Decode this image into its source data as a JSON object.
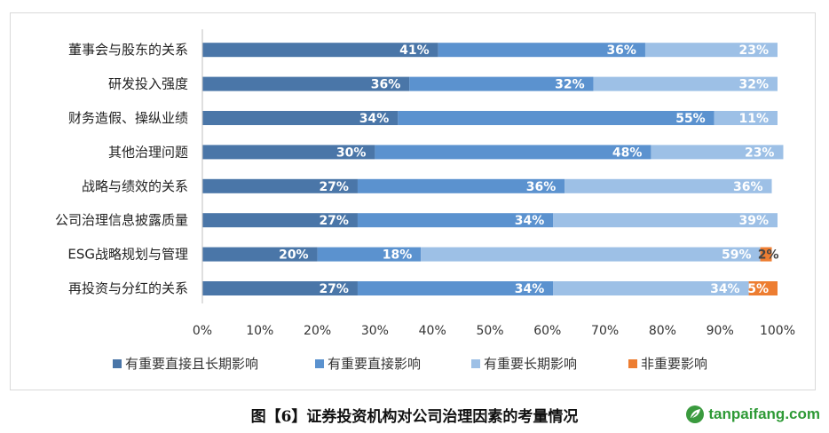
{
  "caption": "图【6】证券投资机构对公司治理因素的考量情况",
  "logo_text": "tanpaifang.com",
  "chart_data": {
    "type": "bar",
    "orientation": "horizontal",
    "stacked": "percent",
    "categories": [
      "董事会与股东的关系",
      "研发投入强度",
      "财务造假、操纵业绩",
      "其他治理问题",
      "战略与绩效的关系",
      "公司治理信息披露质量",
      "ESG战略规划与管理",
      "再投资与分红的关系"
    ],
    "series": [
      {
        "name": "有重要直接且长期影响",
        "color": "#4a76a8",
        "values": [
          41,
          36,
          34,
          30,
          27,
          27,
          20,
          27
        ]
      },
      {
        "name": "有重要直接影响",
        "color": "#5b92cf",
        "values": [
          36,
          32,
          55,
          48,
          36,
          34,
          18,
          34
        ]
      },
      {
        "name": "有重要长期影响",
        "color": "#9dc0e6",
        "values": [
          23,
          32,
          11,
          23,
          36,
          39,
          59,
          34
        ]
      },
      {
        "name": "非重要影响",
        "color": "#ed7d31",
        "values": [
          0,
          0,
          0,
          0,
          0,
          0,
          2,
          5
        ]
      }
    ],
    "data_labels": [
      [
        "41%",
        "36%",
        "23%",
        null
      ],
      [
        "36%",
        "32%",
        "32%",
        null
      ],
      [
        "34%",
        "55%",
        "11%",
        null
      ],
      [
        "30%",
        "48%",
        "23%",
        null
      ],
      [
        "27%",
        "36%",
        "36%",
        null
      ],
      [
        "27%",
        "34%",
        "39%",
        null
      ],
      [
        "20%",
        "18%",
        "59%",
        "2%"
      ],
      [
        "27%",
        "34%",
        "34%",
        "5%"
      ]
    ],
    "xlim": [
      0,
      100
    ],
    "xticks": [
      "0%",
      "10%",
      "20%",
      "30%",
      "40%",
      "50%",
      "60%",
      "70%",
      "80%",
      "90%",
      "100%"
    ],
    "grid": false,
    "legend_position": "bottom"
  }
}
